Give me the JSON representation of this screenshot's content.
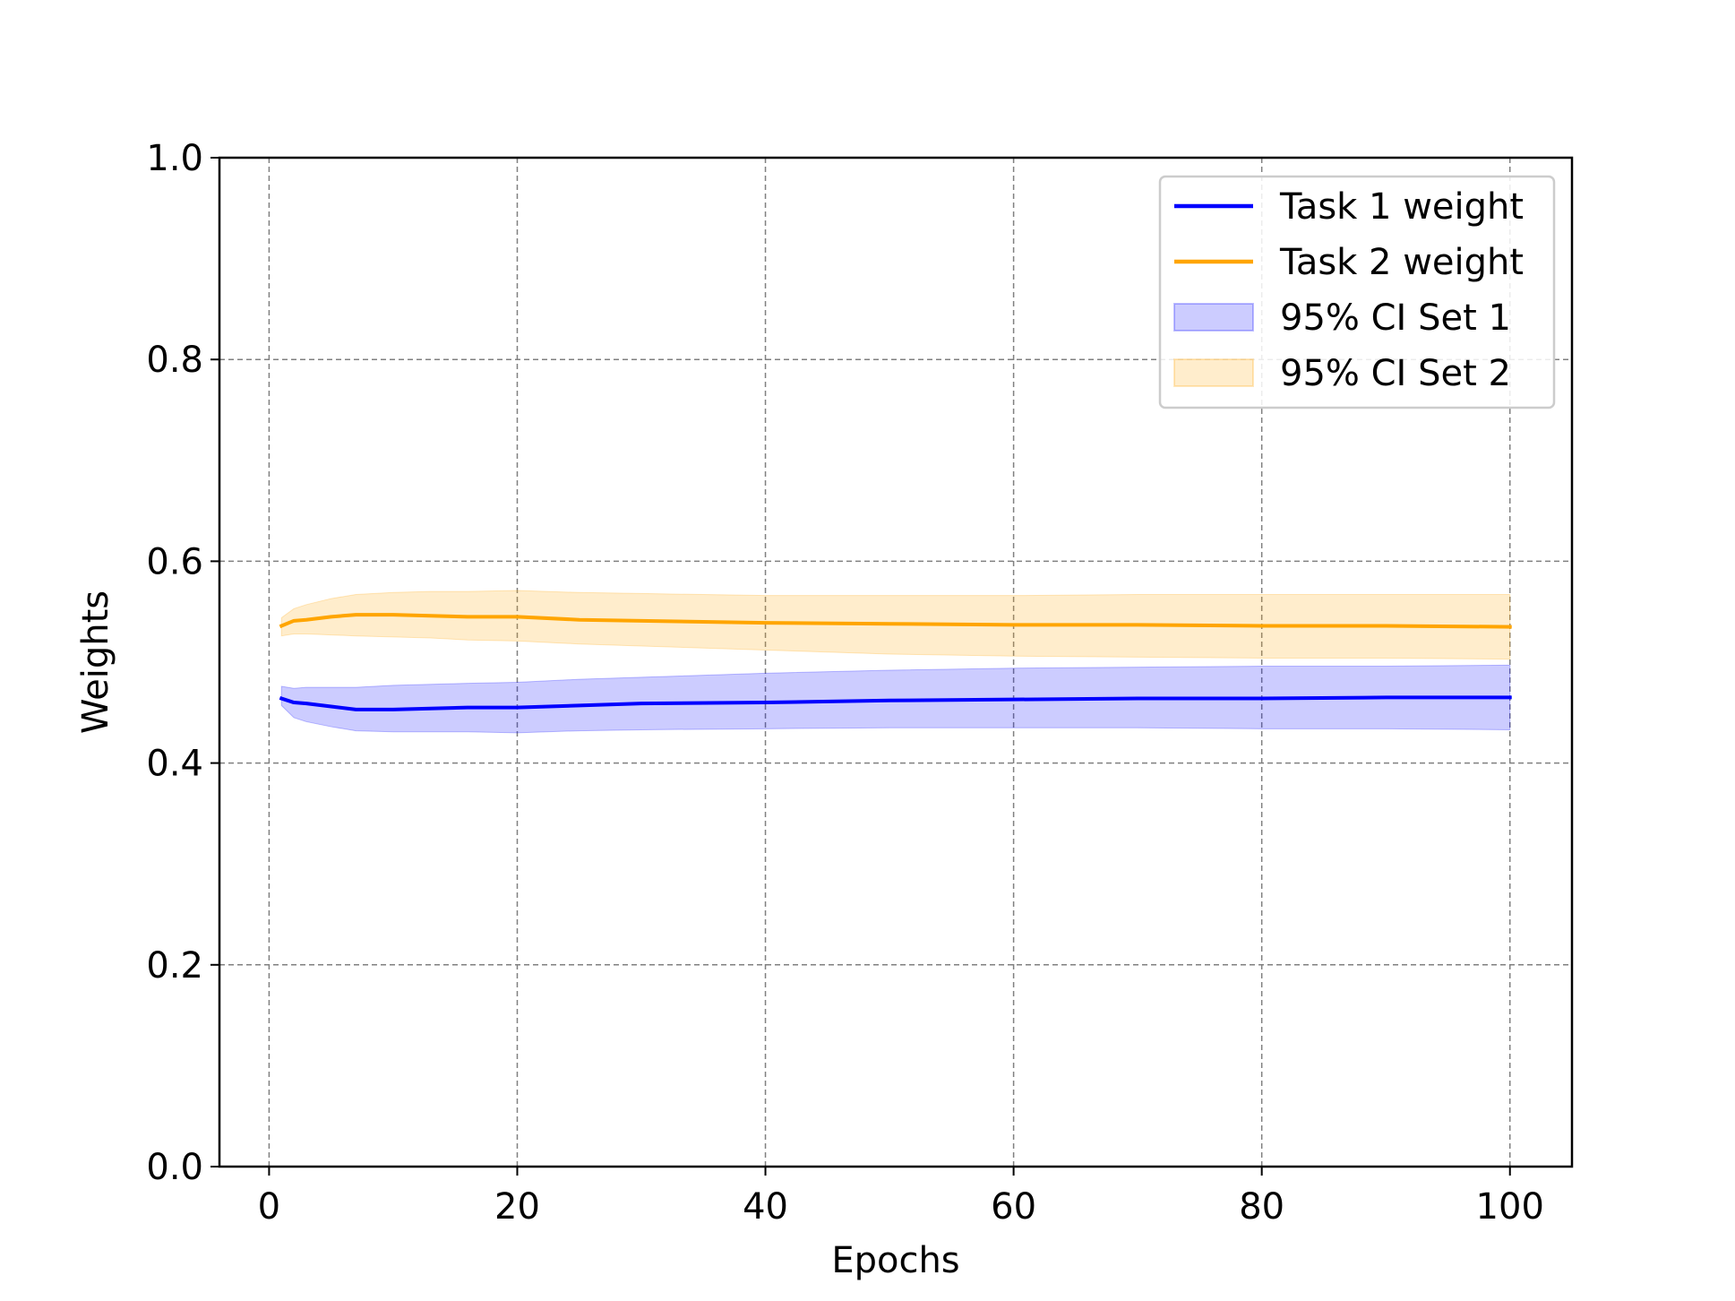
{
  "chart_data": {
    "type": "line",
    "title": "",
    "xlabel": "Epochs",
    "ylabel": "Weights",
    "xlim": [
      -4,
      105
    ],
    "ylim": [
      0.0,
      1.0
    ],
    "x_ticks": [
      0,
      20,
      40,
      60,
      80,
      100
    ],
    "y_ticks": [
      0.0,
      0.2,
      0.4,
      0.6,
      0.8,
      1.0
    ],
    "x_tick_labels": [
      "0",
      "20",
      "40",
      "60",
      "80",
      "100"
    ],
    "y_tick_labels": [
      "0.0",
      "0.2",
      "0.4",
      "0.6",
      "0.8",
      "1.0"
    ],
    "grid": true,
    "legend_position": "top-right",
    "x": [
      1,
      2,
      3,
      5,
      7,
      10,
      13,
      16,
      20,
      25,
      30,
      40,
      50,
      60,
      70,
      80,
      90,
      100
    ],
    "series": [
      {
        "name": "Task 1 weight",
        "color": "#0000ff",
        "values": [
          0.464,
          0.46,
          0.459,
          0.456,
          0.453,
          0.453,
          0.454,
          0.455,
          0.455,
          0.457,
          0.459,
          0.46,
          0.462,
          0.463,
          0.464,
          0.464,
          0.465,
          0.465
        ]
      },
      {
        "name": "Task 2 weight",
        "color": "#ffa500",
        "values": [
          0.536,
          0.541,
          0.542,
          0.545,
          0.547,
          0.547,
          0.546,
          0.545,
          0.545,
          0.542,
          0.541,
          0.539,
          0.538,
          0.537,
          0.537,
          0.536,
          0.536,
          0.535
        ]
      }
    ],
    "bands": [
      {
        "name": "95% CI Set 1",
        "fill": "#0000ff",
        "opacity": 0.2,
        "lower": [
          0.457,
          0.445,
          0.441,
          0.436,
          0.432,
          0.431,
          0.431,
          0.431,
          0.43,
          0.432,
          0.433,
          0.434,
          0.435,
          0.435,
          0.435,
          0.434,
          0.434,
          0.433
        ],
        "upper": [
          0.476,
          0.474,
          0.475,
          0.475,
          0.475,
          0.477,
          0.478,
          0.479,
          0.48,
          0.483,
          0.485,
          0.489,
          0.492,
          0.494,
          0.495,
          0.496,
          0.496,
          0.497
        ]
      },
      {
        "name": "95% CI Set 2",
        "fill": "#ffa500",
        "opacity": 0.2,
        "lower": [
          0.526,
          0.528,
          0.528,
          0.527,
          0.526,
          0.525,
          0.524,
          0.522,
          0.521,
          0.518,
          0.516,
          0.512,
          0.508,
          0.506,
          0.505,
          0.504,
          0.504,
          0.503
        ],
        "upper": [
          0.544,
          0.553,
          0.557,
          0.563,
          0.567,
          0.569,
          0.57,
          0.57,
          0.571,
          0.569,
          0.568,
          0.566,
          0.566,
          0.566,
          0.567,
          0.567,
          0.567,
          0.567
        ]
      }
    ],
    "legend": [
      {
        "label": "Task 1 weight",
        "kind": "line",
        "color": "#0000ff"
      },
      {
        "label": "Task 2 weight",
        "kind": "line",
        "color": "#ffa500"
      },
      {
        "label": "95% CI Set 1",
        "kind": "patch",
        "color": "#0000ff"
      },
      {
        "label": "95% CI Set 2",
        "kind": "patch",
        "color": "#ffa500"
      }
    ]
  }
}
